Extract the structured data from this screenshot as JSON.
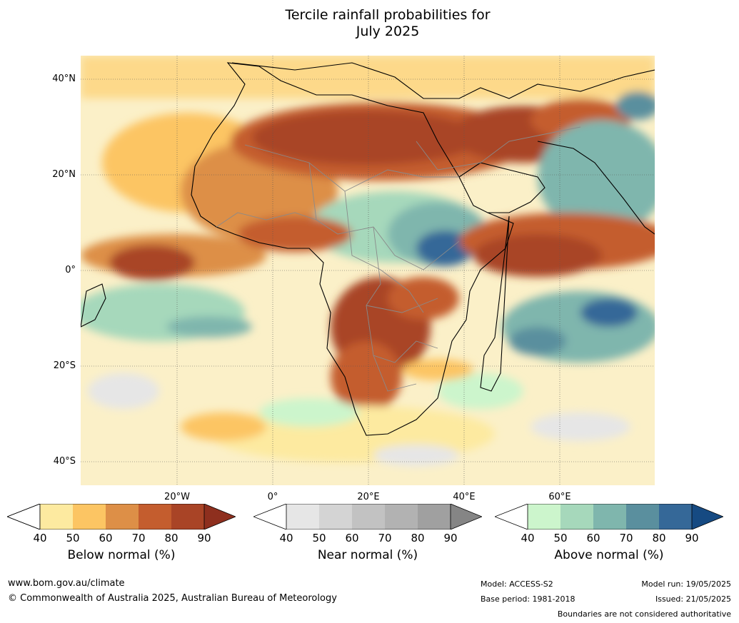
{
  "title_line1": "Tercile rainfall probabilities for",
  "title_line2": "July 2025",
  "lat_labels": [
    "40°N",
    "20°N",
    "0°",
    "20°S",
    "40°S"
  ],
  "lon_labels": [
    "20°W",
    "0°",
    "20°E",
    "40°E",
    "60°E"
  ],
  "legends": [
    {
      "title": "Below normal (%)",
      "ticks": [
        "40",
        "50",
        "60",
        "70",
        "80",
        "90"
      ],
      "colors": [
        "#ffffff",
        "#fdeaa0",
        "#fcc563",
        "#dd8f47",
        "#c45d2e",
        "#a94426",
        "#8e2f1e"
      ]
    },
    {
      "title": "Near normal (%)",
      "ticks": [
        "40",
        "50",
        "60",
        "70",
        "80",
        "90"
      ],
      "colors": [
        "#ffffff",
        "#e6e6e6",
        "#d4d4d4",
        "#c2c2c2",
        "#b2b2b2",
        "#a0a0a0",
        "#858585"
      ]
    },
    {
      "title": "Above normal (%)",
      "ticks": [
        "40",
        "50",
        "60",
        "70",
        "80",
        "90"
      ],
      "colors": [
        "#ffffff",
        "#ccf5cc",
        "#a6d8bb",
        "#7fb6ad",
        "#5a8f9e",
        "#356898",
        "#164a82"
      ]
    }
  ],
  "footer": {
    "url": "www.bom.gov.au/climate",
    "copyright": "© Commonwealth of Australia 2025, Australian Bureau of Meteorology",
    "model": "Model: ACCESS-S2",
    "base_period": "Base period: 1981-2018",
    "model_run": "Model run: 19/05/2025",
    "issued": "Issued: 21/05/2025",
    "disclaimer": "Boundaries are not considered authoritative"
  }
}
